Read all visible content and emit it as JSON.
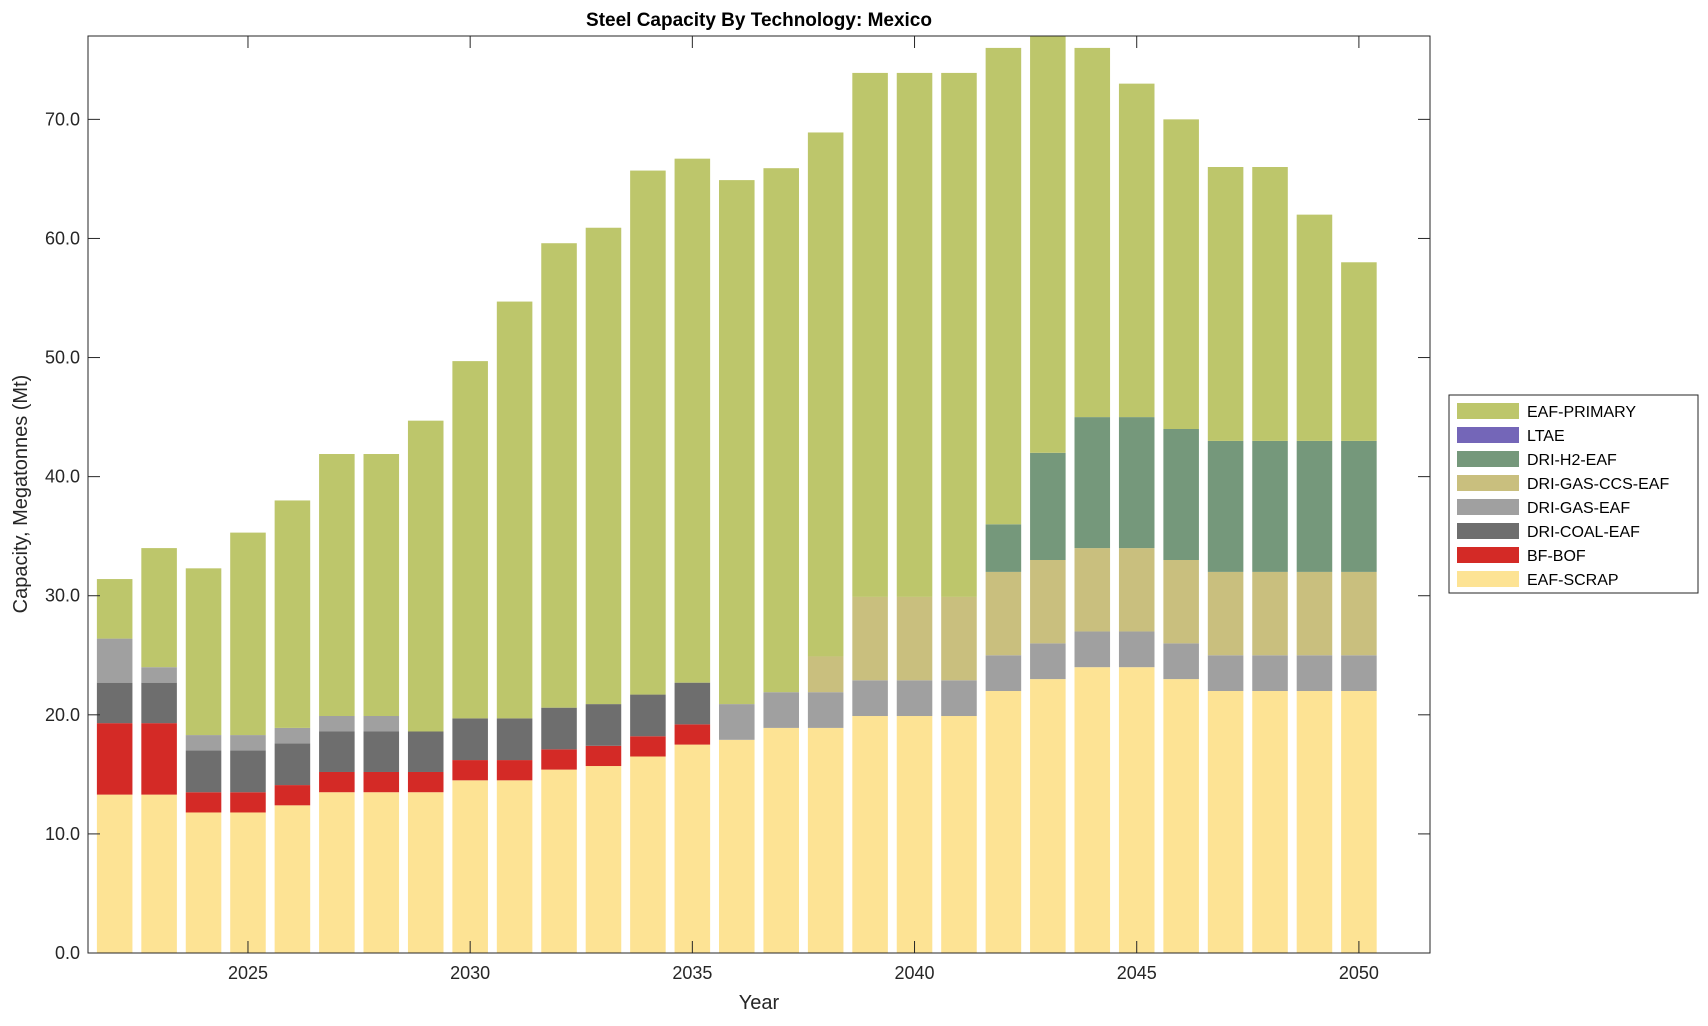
{
  "chart_data": {
    "type": "bar",
    "stacked": true,
    "title": "Steel Capacity By Technology: Mexico",
    "xlabel": "Year",
    "ylabel": "Capacity, Megatonnes (Mt)",
    "xlim": [
      2021.4,
      2051.6
    ],
    "ylim": [
      0,
      77
    ],
    "xticks": [
      2025,
      2030,
      2035,
      2040,
      2045,
      2050
    ],
    "xtick_labels": [
      "2025",
      "2030",
      "2035",
      "2040",
      "2045",
      "2050"
    ],
    "yticks": [
      0,
      10,
      20,
      30,
      40,
      50,
      60,
      70
    ],
    "ytick_labels": [
      "0.0",
      "10.0",
      "20.0",
      "30.0",
      "40.0",
      "50.0",
      "60.0",
      "70.0"
    ],
    "grid": false,
    "legend_position": "right",
    "categories": [
      2022,
      2023,
      2024,
      2025,
      2026,
      2027,
      2028,
      2029,
      2030,
      2031,
      2032,
      2033,
      2034,
      2035,
      2036,
      2037,
      2038,
      2039,
      2040,
      2041,
      2042,
      2043,
      2044,
      2045,
      2046,
      2047,
      2048,
      2049,
      2050
    ],
    "series": [
      {
        "name": "EAF-SCRAP",
        "color": "#fde394",
        "values": [
          13.3,
          13.3,
          11.8,
          11.8,
          12.4,
          13.5,
          13.5,
          13.5,
          14.5,
          14.5,
          15.4,
          15.7,
          16.5,
          17.5,
          17.9,
          18.9,
          18.9,
          19.9,
          19.9,
          19.9,
          22,
          23,
          24,
          24,
          23,
          22,
          22,
          22,
          22
        ]
      },
      {
        "name": "BF-BOF",
        "color": "#d42a26",
        "values": [
          6,
          6,
          1.7,
          1.7,
          1.7,
          1.7,
          1.7,
          1.7,
          1.7,
          1.7,
          1.7,
          1.7,
          1.7,
          1.7,
          0,
          0,
          0,
          0,
          0,
          0,
          0,
          0,
          0,
          0,
          0,
          0,
          0,
          0,
          0
        ]
      },
      {
        "name": "DRI-COAL-EAF",
        "color": "#6e6e6e",
        "values": [
          3.4,
          3.4,
          3.5,
          3.5,
          3.5,
          3.4,
          3.4,
          3.4,
          3.5,
          3.5,
          3.5,
          3.5,
          3.5,
          3.5,
          0,
          0,
          0,
          0,
          0,
          0,
          0,
          0,
          0,
          0,
          0,
          0,
          0,
          0,
          0
        ]
      },
      {
        "name": "DRI-GAS-EAF",
        "color": "#a0a0a0",
        "values": [
          3.7,
          1.3,
          1.3,
          1.3,
          1.3,
          1.3,
          1.3,
          0,
          0,
          0,
          0,
          0,
          0,
          0,
          3,
          3,
          3,
          3,
          3,
          3,
          3,
          3,
          3,
          3,
          3,
          3,
          3,
          3,
          3
        ]
      },
      {
        "name": "DRI-GAS-CCS-EAF",
        "color": "#c9bf7e",
        "values": [
          0,
          0,
          0,
          0,
          0,
          0,
          0,
          0,
          0,
          0,
          0,
          0,
          0,
          0,
          0,
          0,
          3,
          7,
          7,
          7,
          7,
          7,
          7,
          7,
          7,
          7,
          7,
          7,
          7
        ]
      },
      {
        "name": "DRI-H2-EAF",
        "color": "#75987b",
        "values": [
          0,
          0,
          0,
          0,
          0,
          0,
          0,
          0,
          0,
          0,
          0,
          0,
          0,
          0,
          0,
          0,
          0,
          0,
          0,
          0,
          4,
          9,
          11,
          11,
          11,
          11,
          11,
          11,
          11
        ]
      },
      {
        "name": "LTAE",
        "color": "#7466b8",
        "values": [
          0,
          0,
          0,
          0,
          0,
          0,
          0,
          0,
          0,
          0,
          0,
          0,
          0,
          0,
          0,
          0,
          0,
          0,
          0,
          0,
          0,
          0,
          0,
          0,
          0,
          0,
          0,
          0,
          0
        ]
      },
      {
        "name": "EAF-PRIMARY",
        "color": "#bdc66b",
        "values": [
          5,
          10,
          14,
          17,
          19.1,
          22,
          22,
          26.1,
          30,
          35,
          39,
          40,
          44,
          44,
          44,
          44,
          44,
          44,
          44,
          44,
          40,
          35,
          31,
          28,
          26,
          23,
          23,
          19,
          15
        ]
      }
    ],
    "legend_order": [
      "EAF-PRIMARY",
      "LTAE",
      "DRI-H2-EAF",
      "DRI-GAS-CCS-EAF",
      "DRI-GAS-EAF",
      "DRI-COAL-EAF",
      "BF-BOF",
      "EAF-SCRAP"
    ]
  }
}
